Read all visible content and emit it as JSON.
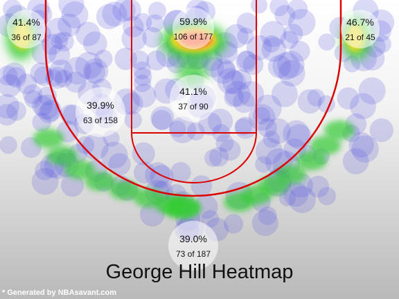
{
  "chart_data": {
    "type": "heatmap",
    "title": "George Hill Heatmap",
    "zones": [
      {
        "zone": "left-corner-three",
        "pct": "41.4%",
        "made_attempts": "36 of 87",
        "made": 36,
        "attempts": 87
      },
      {
        "zone": "restricted-area",
        "pct": "59.9%",
        "made_attempts": "106 of 177",
        "made": 106,
        "attempts": 177
      },
      {
        "zone": "right-corner-three",
        "pct": "46.7%",
        "made_attempts": "21 of 45",
        "made": 21,
        "attempts": 45
      },
      {
        "zone": "left-mid-range",
        "pct": "39.9%",
        "made_attempts": "63 of 158",
        "made": 63,
        "attempts": 158
      },
      {
        "zone": "paint-non-ra",
        "pct": "41.1%",
        "made_attempts": "37 of 90",
        "made": 37,
        "attempts": 90
      },
      {
        "zone": "above-break-three",
        "pct": "39.0%",
        "made_attempts": "73 of 187",
        "made": 73,
        "attempts": 187
      }
    ],
    "colors": {
      "low": "#5a5ae0",
      "mid": "#33cc33",
      "high": "#ff4433",
      "court_lines": "#dd0000"
    }
  },
  "footer": {
    "note": "* Generated by NBAsavant.com"
  }
}
